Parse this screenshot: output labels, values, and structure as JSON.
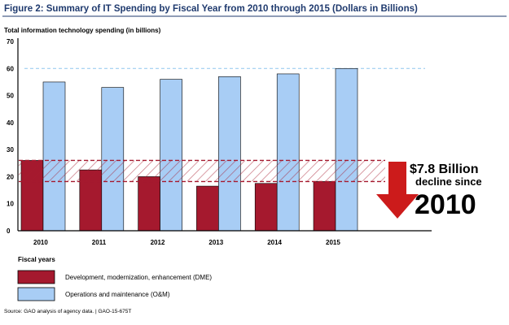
{
  "chart_data": {
    "type": "bar",
    "title": "Figure 2: Summary of IT Spending by Fiscal Year from 2010 through 2015 (Dollars in Billions)",
    "ylabel": "Total information technology spending (in billions)",
    "xlabel": "Fiscal years",
    "ylim": [
      0,
      70
    ],
    "yticks": [
      0,
      10,
      20,
      30,
      40,
      50,
      60,
      70
    ],
    "categories": [
      "2010",
      "2011",
      "2012",
      "2013",
      "2014",
      "2015"
    ],
    "series": [
      {
        "name": "Development, modernization, enhancement (DME)",
        "color": "#a5192e",
        "values": [
          26,
          22.5,
          20,
          16.5,
          17.5,
          18.2
        ]
      },
      {
        "name": "Operations and maintenance (O&M)",
        "color": "#a8cdf5",
        "values": [
          55,
          53,
          56,
          57,
          58,
          60
        ]
      }
    ],
    "reference_line": 60,
    "decline_band": [
      18.2,
      26
    ],
    "annotation": {
      "line1": "$7.8 Billion",
      "line2": "decline since",
      "line3": "2010"
    },
    "source": "Source: GAO analysis of agency data. | GAO-15-675T",
    "legend_position": "bottom-left",
    "grid": false
  }
}
